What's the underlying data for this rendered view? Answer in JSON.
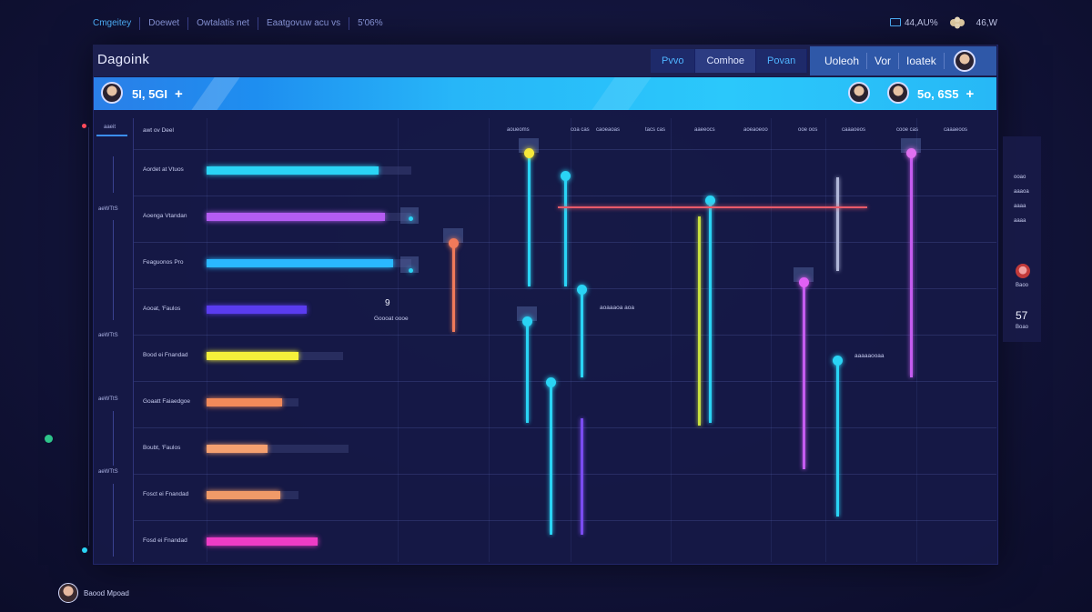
{
  "topnav": {
    "items": [
      "Cmgeitey",
      "Doewet",
      "Owtalatis net",
      "Eaatgovuw acu vs",
      "5'06%"
    ],
    "active_index": 0
  },
  "top_right": {
    "status_a": "44,AU%",
    "status_b": "46,W"
  },
  "app": {
    "title": "Dagoink"
  },
  "header_tabs": [
    "Pvvo",
    "Comhoe",
    "Povan"
  ],
  "header_tabs_selected": 1,
  "header_tabs_right": [
    "Uoleoh",
    "Vor",
    "Ioatek"
  ],
  "bluebar": {
    "left_text": "5I, 5GI",
    "right_text": "5o, 6S5"
  },
  "rail": {
    "labels": [
      "aaeit",
      "aeWTtS",
      "aeWTtS",
      "aeWTtS",
      "aeWTtS"
    ]
  },
  "chart_header": "awt ov Deel",
  "column_headers": [
    "aoueoms",
    "coa cas",
    "caoeaoas",
    "tacs cas",
    "aaeeocs",
    "aoeaoeoo",
    "ooe oos",
    "caaaoeos",
    "cooe cas",
    "caaaeoos"
  ],
  "chart_data": {
    "type": "bar",
    "categories": [
      "Aordet at Vtuos",
      "Aoenga Vtandan",
      "Feaguonos Pro",
      "Aooat, 'Faulos",
      "Bood ei Fnandad",
      "Goaatt Faiaedgoe",
      "Boubt, 'Faulos",
      "Fosct ei Fnandad",
      "Fosd ei Fnandad"
    ],
    "values": [
      0.82,
      0.85,
      0.89,
      0.48,
      0.44,
      0.36,
      0.29,
      0.35,
      0.53
    ],
    "track_ends": [
      0.98,
      0.98,
      0.98,
      0.48,
      0.65,
      0.44,
      0.68,
      0.44,
      0.53
    ],
    "colors": [
      "#2ad4f5",
      "#b45cf2",
      "#2ab8ff",
      "#5a3cf0",
      "#f5f03a",
      "#f28a5a",
      "#f5a070",
      "#f09a68",
      "#ee3cc6"
    ]
  },
  "annotations": {
    "mid_value": "9",
    "mid_label": "Goooat oooe",
    "small_a": "aoaaaoa aoa",
    "small_b": "aaaaaooaa"
  },
  "side": {
    "rows": [
      "ooao",
      "aaaoa",
      "aaaa",
      "aaaa"
    ],
    "user_label": "Baoo",
    "big_value": "57",
    "big_label": "Boao"
  },
  "bottom_user": {
    "name": "Baood Mpoad"
  },
  "colors": {
    "accent": "#4fb4ff",
    "bar_blue": "#27b6f8",
    "bg": "#12143a"
  }
}
